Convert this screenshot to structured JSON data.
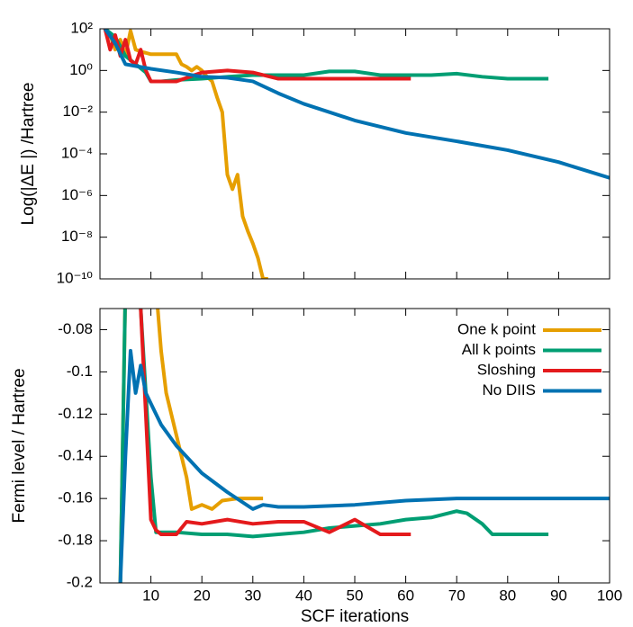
{
  "chart_data": [
    {
      "type": "line",
      "ylabel": "Log(|ΔE |) /Hartree",
      "log_scale": true,
      "xlim": [
        0,
        100
      ],
      "xticks": [
        10,
        20,
        30,
        40,
        50,
        60,
        70,
        80,
        90,
        100
      ],
      "xtick_labels": false,
      "ylim": [
        1e-10,
        100
      ],
      "yticks": [
        {
          "value": 100,
          "label": "10²"
        },
        {
          "value": 1,
          "label": "10⁰"
        },
        {
          "value": 0.01,
          "label": "10⁻²"
        },
        {
          "value": 0.0001,
          "label": "10⁻⁴"
        },
        {
          "value": 1e-06,
          "label": "10⁻⁶"
        },
        {
          "value": 1e-08,
          "label": "10⁻⁸"
        },
        {
          "value": 1e-10,
          "label": "10⁻¹⁰"
        }
      ],
      "series": [
        {
          "color": "#e69f00",
          "x": [
            1,
            2,
            3,
            4,
            5,
            6,
            7,
            8,
            9,
            10,
            12,
            14,
            15,
            16,
            17,
            18,
            19,
            20,
            21,
            22,
            23,
            24,
            25,
            26,
            27,
            28,
            29,
            30,
            31,
            32,
            33
          ],
          "values": [
            100,
            50,
            10,
            30,
            5,
            80,
            10,
            8,
            7,
            6,
            6,
            6,
            6,
            2,
            1.5,
            1,
            1.5,
            1,
            0.5,
            0.3,
            0.05,
            0.01,
            1e-05,
            2e-06,
            1e-05,
            1e-07,
            2e-08,
            5e-09,
            1e-09,
            1e-10,
            1e-10
          ]
        },
        {
          "color": "#009e73",
          "x": [
            1,
            3,
            5,
            7,
            9,
            10,
            12,
            15,
            20,
            25,
            30,
            35,
            40,
            45,
            50,
            55,
            60,
            65,
            70,
            75,
            80,
            88
          ],
          "values": [
            100,
            40,
            5,
            2,
            0.8,
            0.3,
            0.3,
            0.35,
            0.4,
            0.5,
            0.6,
            0.6,
            0.6,
            0.9,
            0.9,
            0.6,
            0.6,
            0.6,
            0.7,
            0.5,
            0.4,
            0.4
          ]
        },
        {
          "color": "#e41a1c",
          "x": [
            1,
            2,
            3,
            4,
            5,
            6,
            7,
            8,
            9,
            10,
            12,
            15,
            20,
            25,
            30,
            35,
            40,
            45,
            50,
            55,
            61
          ],
          "values": [
            100,
            10,
            50,
            5,
            30,
            3,
            2,
            10,
            1,
            0.3,
            0.3,
            0.3,
            0.8,
            1,
            0.8,
            0.4,
            0.4,
            0.4,
            0.4,
            0.4,
            0.4
          ]
        },
        {
          "color": "#0072b2",
          "x": [
            1,
            3,
            5,
            10,
            15,
            20,
            25,
            30,
            35,
            40,
            50,
            60,
            70,
            80,
            90,
            100
          ],
          "values": [
            100,
            20,
            2,
            1.2,
            0.8,
            0.5,
            0.45,
            0.3,
            0.08,
            0.025,
            0.004,
            0.001,
            0.0004,
            0.00015,
            4e-05,
            7e-06
          ]
        }
      ]
    },
    {
      "type": "line",
      "ylabel": "Fermi level / Hartree",
      "xlabel": "SCF iterations",
      "legend": "top-right",
      "xlim": [
        0,
        100
      ],
      "xticks": [
        10,
        20,
        30,
        40,
        50,
        60,
        70,
        80,
        90,
        100
      ],
      "ylim": [
        -0.2,
        -0.07
      ],
      "yticks": [
        -0.2,
        -0.18,
        -0.16,
        -0.14,
        -0.12,
        -0.1,
        -0.08
      ],
      "series": [
        {
          "name": "One k point",
          "color": "#e69f00",
          "x": [
            4,
            5,
            11,
            12,
            13,
            14,
            15,
            16,
            17,
            18,
            20,
            22,
            24,
            27,
            30,
            32
          ],
          "values": [
            -0.2,
            -0.06,
            -0.06,
            -0.09,
            -0.11,
            -0.12,
            -0.13,
            -0.14,
            -0.15,
            -0.165,
            -0.163,
            -0.165,
            -0.161,
            -0.16,
            -0.16,
            -0.16
          ]
        },
        {
          "name": "All k points",
          "color": "#009e73",
          "x": [
            4,
            5,
            8,
            10,
            11,
            15,
            20,
            25,
            30,
            35,
            40,
            45,
            50,
            55,
            60,
            65,
            70,
            72,
            75,
            77,
            88
          ],
          "values": [
            -0.2,
            -0.06,
            -0.07,
            -0.15,
            -0.176,
            -0.176,
            -0.177,
            -0.177,
            -0.178,
            -0.177,
            -0.176,
            -0.174,
            -0.173,
            -0.172,
            -0.17,
            -0.169,
            -0.166,
            -0.167,
            -0.172,
            -0.177,
            -0.177
          ]
        },
        {
          "name": "Sloshing",
          "color": "#e41a1c",
          "x": [
            7,
            8,
            9,
            10,
            11,
            12,
            15,
            17,
            20,
            25,
            30,
            35,
            40,
            45,
            50,
            55,
            61
          ],
          "values": [
            -0.06,
            -0.07,
            -0.12,
            -0.17,
            -0.175,
            -0.177,
            -0.177,
            -0.171,
            -0.172,
            -0.17,
            -0.172,
            -0.171,
            -0.171,
            -0.176,
            -0.17,
            -0.177,
            -0.177
          ]
        },
        {
          "name": "No DIIS",
          "color": "#0072b2",
          "x": [
            4,
            5,
            6,
            7,
            8,
            9,
            10,
            12,
            15,
            20,
            25,
            30,
            32,
            35,
            40,
            50,
            60,
            70,
            80,
            100
          ],
          "values": [
            -0.2,
            -0.14,
            -0.09,
            -0.11,
            -0.097,
            -0.11,
            -0.115,
            -0.125,
            -0.135,
            -0.148,
            -0.157,
            -0.165,
            -0.163,
            -0.164,
            -0.164,
            -0.163,
            -0.161,
            -0.16,
            -0.16,
            -0.16
          ]
        }
      ]
    }
  ]
}
